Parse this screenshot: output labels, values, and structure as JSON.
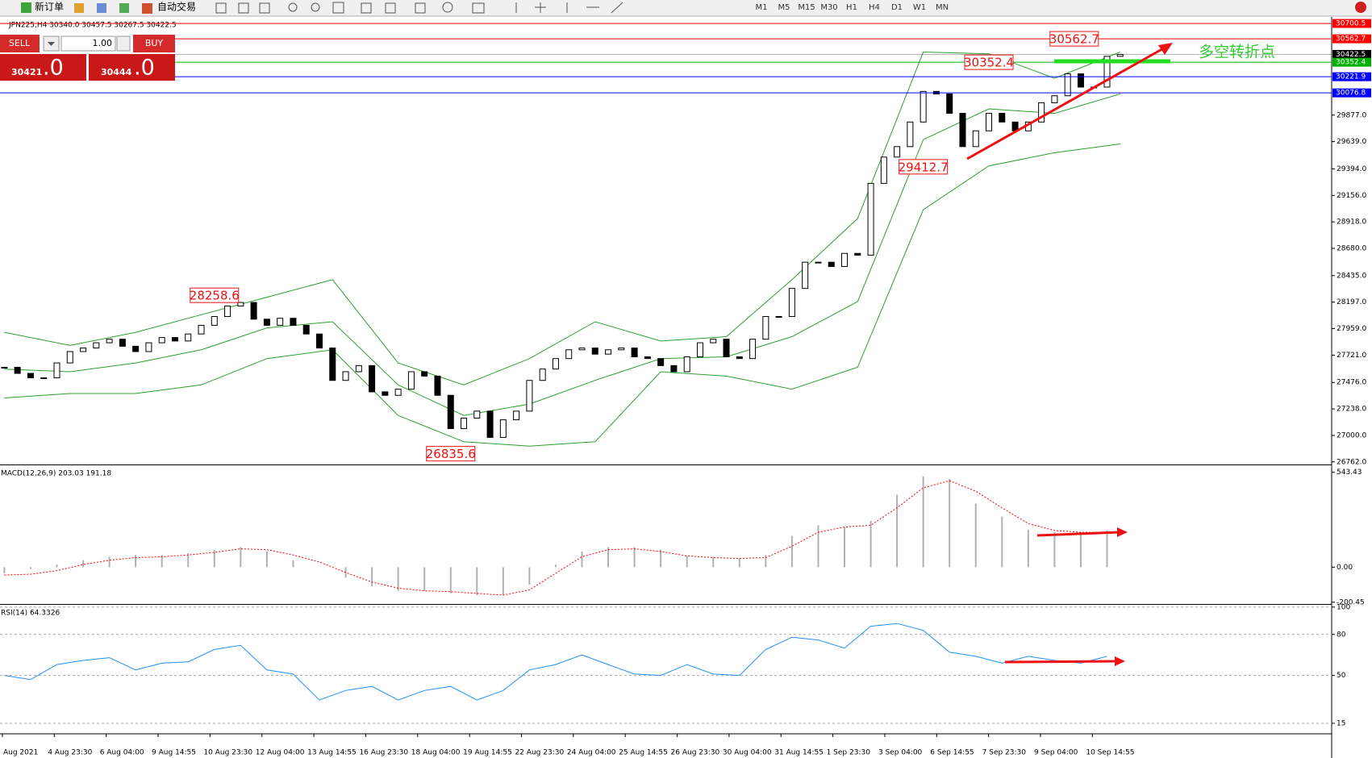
{
  "toolbar": {
    "new_order": "新订单",
    "auto_trading": "自动交易",
    "timeframes": [
      "M1",
      "M5",
      "M15",
      "M30",
      "H1",
      "H4",
      "D1",
      "W1",
      "MN"
    ]
  },
  "trade_panel": {
    "sell": "SELL",
    "lots": "1.00",
    "buy": "BUY",
    "bid_main": "30421",
    "bid_tail": ".0",
    "ask_main": "30444",
    "ask_tail": ".0"
  },
  "chart_data": [
    {
      "type": "candlestick",
      "header": "JPN225,H4  30340.0 30457.5 30267.5 30422.5",
      "close": [
        27612,
        27557,
        27517,
        27517,
        27651,
        27753,
        27785,
        27832,
        27864,
        27801,
        27753,
        27832,
        27879,
        27848,
        27911,
        27989,
        28068,
        28162,
        28194,
        28044,
        27989,
        28052,
        27989,
        27911,
        27785,
        27494,
        27572,
        27627,
        27391,
        27360,
        27415,
        27572,
        27533,
        27360,
        27061,
        27155,
        27218,
        26982,
        27140,
        27218,
        27494,
        27596,
        27690,
        27769,
        27785,
        27730,
        27769,
        27785,
        27706,
        27690,
        27627,
        27572,
        27706,
        27832,
        27864,
        27706,
        27690,
        27864,
        28068,
        28068,
        28320,
        28556,
        28556,
        28517,
        28635,
        28619,
        29264,
        29500,
        29594,
        29815,
        30090,
        30067,
        29893,
        29594,
        29736,
        29893,
        29815,
        29736,
        29815,
        29988,
        30051,
        30248,
        30129,
        30129,
        30405,
        30422.5
      ],
      "bands": {
        "color": "#2ca02c",
        "x": [
          0,
          5,
          10,
          15,
          20,
          25,
          30,
          35,
          40,
          45,
          50,
          55,
          60,
          65,
          70,
          75,
          80,
          85
        ],
        "upper": [
          27926,
          27808,
          27926,
          28084,
          28241,
          28399,
          27651,
          27454,
          27690,
          28021,
          27848,
          27887,
          28399,
          28949,
          30444,
          30428,
          30208,
          30444
        ],
        "middle": [
          27596,
          27572,
          27651,
          27769,
          27966,
          28021,
          27454,
          27179,
          27281,
          27494,
          27690,
          27706,
          27887,
          28202,
          29657,
          29933,
          29893,
          30067
        ],
        "lower": [
          27336,
          27376,
          27376,
          27454,
          27690,
          27769,
          27179,
          26943,
          26904,
          26943,
          27572,
          27533,
          27415,
          27612,
          29028,
          29421,
          29539,
          29618
        ]
      },
      "ylim": [
        26746,
        30759
      ],
      "yticks": [
        {
          "value": 26762,
          "label": "26762.0"
        },
        {
          "value": 27000,
          "label": "27000.0"
        },
        {
          "value": 27238,
          "label": "27238.0"
        },
        {
          "value": 27476,
          "label": "27476.0"
        },
        {
          "value": 27721,
          "label": "27721.0"
        },
        {
          "value": 27959,
          "label": "27959.0"
        },
        {
          "value": 28197,
          "label": "28197.0"
        },
        {
          "value": 28435,
          "label": "28435.0"
        },
        {
          "value": 28680,
          "label": "28680.0"
        },
        {
          "value": 28918,
          "label": "28918.0"
        },
        {
          "value": 29156,
          "label": "29156.0"
        },
        {
          "value": 29394,
          "label": "29394.0"
        },
        {
          "value": 29639,
          "label": "29639.0"
        },
        {
          "value": 29877,
          "label": "29877.0"
        }
      ],
      "levels": [
        {
          "value": 30700.5,
          "color": "#ff0000"
        },
        {
          "value": 30562.7,
          "color": "#ff0000"
        },
        {
          "value": 30422.5,
          "color": "#000000"
        },
        {
          "value": 30352.4,
          "color": "#00b000"
        },
        {
          "value": 30221.9,
          "color": "#0000ff"
        },
        {
          "value": 30076.8,
          "color": "#0000ff"
        }
      ],
      "annotations": [
        {
          "x": 16,
          "value": 28258.6
        },
        {
          "x": 34,
          "value": 26835.6
        },
        {
          "x": 70,
          "value": 29412.7
        },
        {
          "x": 75,
          "value": 30352.4
        },
        {
          "x": 81.5,
          "value": 30562.7
        }
      ],
      "note": "多空转折点",
      "x_labels": [
        "Aug 2021",
        "4 Aug 23:30",
        "6 Aug 04:00",
        "9 Aug 14:55",
        "10 Aug 23:30",
        "12 Aug 04:00",
        "13 Aug 14:55",
        "16 Aug 23:30",
        "18 Aug 04:00",
        "19 Aug 14:55",
        "22 Aug 23:30",
        "24 Aug 04:00",
        "25 Aug 14:55",
        "26 Aug 23:30",
        "30 Aug 04:00",
        "31 Aug 14:55",
        "1 Sep 23:30",
        "3 Sep 04:00",
        "6 Sep 14:55",
        "7 Sep 23:30",
        "9 Sep 04:00",
        "10 Sep 14:55"
      ]
    },
    {
      "type": "macd",
      "title": "MACD(12,26,9) 203.03 191.18",
      "x": [
        0,
        2,
        4,
        6,
        8,
        10,
        12,
        14,
        16,
        18,
        20,
        22,
        24,
        26,
        28,
        30,
        32,
        34,
        36,
        38,
        40,
        42,
        44,
        46,
        48,
        50,
        52,
        54,
        56,
        58,
        60,
        62,
        64,
        66,
        68,
        70,
        72,
        74,
        76,
        78,
        80,
        82,
        84
      ],
      "histogram": [
        -35,
        -10,
        15,
        40,
        60,
        70,
        70,
        80,
        100,
        115,
        90,
        40,
        0,
        -60,
        -110,
        -135,
        -135,
        -150,
        -160,
        -160,
        -100,
        15,
        90,
        115,
        115,
        100,
        65,
        60,
        50,
        70,
        180,
        240,
        230,
        265,
        415,
        520,
        505,
        365,
        290,
        215,
        200,
        200,
        210
      ],
      "signal": [
        -45,
        -40,
        -20,
        15,
        40,
        55,
        60,
        70,
        85,
        105,
        100,
        70,
        30,
        -30,
        -85,
        -120,
        -135,
        -140,
        -150,
        -160,
        -130,
        -35,
        60,
        100,
        105,
        90,
        65,
        55,
        50,
        55,
        120,
        200,
        230,
        240,
        340,
        455,
        495,
        435,
        340,
        250,
        210,
        200,
        200
      ],
      "hist_color": "#b0b0b0",
      "signal_color": "#ff0000",
      "ylim": [
        -206,
        579
      ],
      "yticks": [
        543.43,
        {
          "value": 0,
          "label": "0.00"
        },
        -200.45
      ]
    },
    {
      "type": "line",
      "title": "RSI(14) 64.3326",
      "color": "#1e90ff",
      "grid": true,
      "x": [
        0,
        2,
        4,
        6,
        8,
        10,
        12,
        14,
        16,
        18,
        20,
        22,
        24,
        26,
        28,
        30,
        32,
        34,
        36,
        38,
        40,
        42,
        44,
        46,
        48,
        50,
        52,
        54,
        56,
        58,
        60,
        62,
        64,
        66,
        68,
        70,
        72,
        74,
        76,
        78,
        80,
        82,
        84
      ],
      "values": [
        50,
        47,
        58,
        61,
        63,
        54,
        59,
        60,
        69,
        72,
        54,
        51,
        32,
        39,
        42,
        32,
        39,
        42,
        32,
        39,
        54,
        58,
        65,
        58,
        51,
        50,
        58,
        51,
        50,
        69,
        78,
        76,
        70,
        86,
        88,
        83,
        67,
        64,
        59,
        64,
        61,
        59,
        64
      ],
      "ylim": [
        7.9,
        101.1
      ],
      "yticks": [
        100,
        80,
        50,
        15
      ]
    }
  ]
}
